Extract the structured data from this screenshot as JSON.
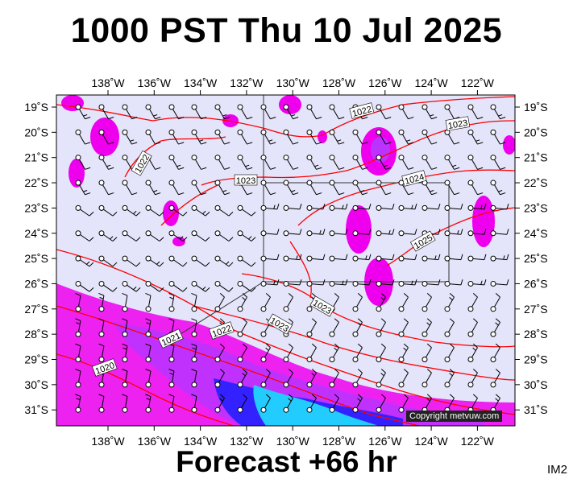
{
  "title": "1000 PST Thu 10 Jul 2025",
  "subtitle": "Forecast +66 hr",
  "model_tag": "IM2",
  "copyright": "Copyright metvuw.com",
  "colors": {
    "map_background": "#e4e4fa",
    "isobar": "#ff0000",
    "rain_light": "#ee00ee",
    "rain_medium": "#bb33ff",
    "rain_heavy": "#3322ff",
    "rain_extreme": "#22ccff"
  },
  "map": {
    "lon_labels": [
      "138˚W",
      "136˚W",
      "134˚W",
      "132˚W",
      "130˚W",
      "128˚W",
      "126˚W",
      "124˚W",
      "122˚W"
    ],
    "lat_labels": [
      "19˚S",
      "20˚S",
      "21˚S",
      "22˚S",
      "23˚S",
      "24˚S",
      "25˚S",
      "26˚S",
      "27˚S",
      "28˚S",
      "29˚S",
      "30˚S",
      "31˚S"
    ],
    "isobar_labels": [
      "1020",
      "1021",
      "1022",
      "1022",
      "1022",
      "1023",
      "1023",
      "1023",
      "1023",
      "1024",
      "1025"
    ]
  }
}
